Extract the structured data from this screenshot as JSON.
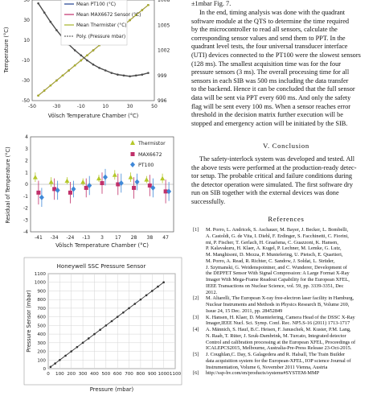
{
  "chart_data": [
    {
      "type": "line",
      "title": "",
      "xlabel": "Völsch Temperature Chamber (°C)",
      "ylabel": "Temperature (°C)",
      "y2label": "",
      "xlim": [
        -50,
        50
      ],
      "ylim": [
        -50,
        50
      ],
      "y2lim": [
        996,
        1008
      ],
      "x_ticks": [
        "-50",
        "-30",
        "-10",
        "10",
        "30",
        "50"
      ],
      "y_ticks": [
        "-50",
        "-30",
        "-10",
        "10",
        "30",
        "50"
      ],
      "y2_ticks": [
        "996",
        "999",
        "1002",
        "1005",
        "1008"
      ],
      "legend": {
        "placement": "top-center",
        "entries": [
          "Mean PT100 (°C)",
          "Mean MAX6672 Sensor (°C)",
          "Mean Thermister (°C)",
          "Poly. (Pressure mbar)"
        ]
      },
      "series": [
        {
          "name": "Mean PT100 (°C)",
          "color": "#1f3f8f",
          "axis": "left",
          "x": [
            -45,
            -40,
            -35,
            -30,
            -25,
            -20,
            -15,
            -10,
            -5,
            0,
            5,
            10,
            15,
            20,
            25,
            30,
            35,
            40,
            45
          ],
          "y": [
            -45,
            -40,
            -35,
            -30,
            -25,
            -20,
            -15,
            -10,
            -5,
            0,
            5,
            10,
            15,
            20,
            25,
            30,
            35,
            40,
            45
          ]
        },
        {
          "name": "Mean MAX6672 Sensor (°C)",
          "color": "#c0306a",
          "axis": "left",
          "x": [
            -45,
            -40,
            -35,
            -30,
            -25,
            -20,
            -15,
            -10,
            -5,
            0,
            5,
            10,
            15,
            20,
            25,
            30,
            35,
            40,
            45
          ],
          "y": [
            -45,
            -40,
            -35,
            -30,
            -25,
            -20,
            -15,
            -10,
            -5,
            0,
            5,
            10,
            15,
            20,
            25,
            30,
            35,
            40,
            45
          ]
        },
        {
          "name": "Mean Thermister (°C)",
          "color": "#a7b52a",
          "axis": "left",
          "x": [
            -45,
            -40,
            -35,
            -30,
            -25,
            -20,
            -15,
            -10,
            -5,
            0,
            5,
            10,
            15,
            20,
            25,
            30,
            35,
            40,
            45
          ],
          "y": [
            -45,
            -40,
            -35,
            -30,
            -25,
            -20,
            -15,
            -10,
            -5,
            0,
            5,
            10,
            15,
            20,
            25,
            30,
            35,
            40,
            45
          ]
        },
        {
          "name": "Poly. (Pressure mbar)",
          "color": "#4a4a4a",
          "axis": "right",
          "x": [
            -45,
            -40,
            -35,
            -30,
            -25,
            -20,
            -15,
            -10,
            -5,
            0,
            5,
            10,
            15,
            20,
            25,
            30,
            35,
            40,
            45
          ],
          "y": [
            1007.6,
            1006.5,
            1005.4,
            1004.4,
            1003.5,
            1002.7,
            1002.0,
            1001.4,
            1000.8,
            1000.3,
            999.9,
            999.6,
            999.3,
            999.1,
            999.0,
            998.9,
            999.0,
            999.1,
            999.3
          ]
        }
      ]
    },
    {
      "type": "scatter",
      "title": "",
      "xlabel": "Völsch Temperature Chamber (°C)",
      "ylabel": "Residual of Temperature (°C)",
      "ylim": [
        -4,
        4
      ],
      "y_ticks": [
        "-4",
        "-3",
        "-2",
        "-1",
        "0",
        "1",
        "2",
        "3",
        "4"
      ],
      "categories": [
        "-41",
        "-34",
        "-24",
        "-13",
        "3",
        "17",
        "28",
        "38",
        "47"
      ],
      "legend": {
        "placement": "top-right",
        "entries": [
          "Thermistor",
          "MAX6672",
          "PT100"
        ]
      },
      "series": [
        {
          "name": "Thermistor",
          "color": "#b5c82a",
          "marker": "triangle",
          "values": [
            0.6,
            0.2,
            0.3,
            0.2,
            0.5,
            0.8,
            0.6,
            0.4,
            0.5
          ],
          "err": [
            0.4,
            0.4,
            0.3,
            0.3,
            0.3,
            0.4,
            0.4,
            0.3,
            0.4
          ]
        },
        {
          "name": "MAX6672",
          "color": "#c0306a",
          "marker": "square",
          "values": [
            -0.7,
            -0.4,
            -0.7,
            -0.3,
            0.1,
            0.0,
            -0.3,
            -0.1,
            -0.6
          ],
          "err": [
            1.0,
            0.9,
            0.9,
            0.8,
            0.9,
            0.9,
            0.9,
            0.9,
            1.0
          ]
        },
        {
          "name": "PT100",
          "color": "#3f88d8",
          "marker": "diamond",
          "values": [
            -1.1,
            -0.5,
            -0.4,
            -0.1,
            0.6,
            0.1,
            0.2,
            -0.3,
            -0.6
          ],
          "err": [
            0.8,
            0.8,
            0.7,
            0.8,
            0.7,
            0.8,
            0.7,
            0.8,
            0.8
          ]
        }
      ]
    },
    {
      "type": "scatter",
      "title": "Honeywell SSC Pressure Sensor",
      "xlabel": "Pressure (mbar)",
      "ylabel": "Pressure Sensor (mbar)",
      "xlim": [
        0,
        1100
      ],
      "ylim": [
        0,
        1100
      ],
      "x_ticks": [
        "0",
        "100",
        "200",
        "300",
        "400",
        "500",
        "600",
        "700",
        "800",
        "900",
        "1000",
        "1100"
      ],
      "y_ticks": [
        "0",
        "100",
        "200",
        "300",
        "400",
        "500",
        "600",
        "700",
        "800",
        "900",
        "1000",
        "1100"
      ],
      "grid": true,
      "series": [
        {
          "name": "",
          "color": "#333333",
          "x": [
            20,
            60,
            100,
            150,
            200,
            250,
            300,
            350,
            400,
            450,
            500,
            550,
            600,
            650,
            700,
            750,
            800,
            850,
            900,
            950,
            1000
          ],
          "y": [
            20,
            60,
            100,
            150,
            200,
            250,
            300,
            350,
            400,
            450,
            500,
            550,
            600,
            650,
            700,
            750,
            800,
            850,
            900,
            950,
            1000
          ]
        }
      ]
    }
  ],
  "text": {
    "intro_line": "±1mbar Fig. 7.",
    "para1": [
      "In the end, timing analysis was done with the quadrant",
      "software module at the QTS to determine the time required",
      "by the microcontroller to read all sensors, calculate the",
      "corresponding sensor values and send them to PPT. In the",
      "quadrant level tests, the four universal transducer interface",
      "(UTI) devices connected to the PT100 were the slowest sensors",
      "(128 ms). The smallest acquisition time was for the four",
      "pressure sensors (3 ms). The overall processing time for all",
      "sensors in each SIB was 500 ms including the data transfer",
      "to the backend. Hence it can be concluded that the full sensor",
      "data will be sent via PPT every 600 ms. And only the safety",
      "flag will be sent every 100 ms. When a sensor reaches error",
      "threshold in the decision matrix further execution will be",
      "stopped and emergency action will be initiated by the SIB."
    ],
    "conclusion_heading": "V. Conclusion",
    "para2": [
      "The safety-interlock system was developed and tested. All",
      "the above tests were performed at the production-ready detec-",
      "tor setup. The probable critical and failure conditions during",
      "the detector operation were simulated. The first software dry",
      "run on SIB together with the external devices was done",
      "successfully."
    ],
    "references_heading": "References",
    "references": [
      {
        "n": "[1]",
        "lines": [
          "M. Porro, L. Andricek, S. Aschauer, M. Bayer, J. Becker, L. Bombelli,",
          "A. Castoldi, G. de Vita, I. Diehl, F. Erdinger, S. Facchinetti, C. Fiorini,",
          "mi, P. Fischer, T. Gerlach, H. Graafsma, C. Guazzoni, K. Hansen,",
          "P. Kalavakuru, H. Klaer, A. Kugel, P. Lechner, M. Lemke, G. Lutz,",
          "M. Manghisoni, D. Mezza, P. Muntefering, U. Pietsch, E. Quartieri,",
          "M. Porro, A. Read, R. Richter, C. Sandow, J. Soldat, L. Strüder,",
          "J. Szymanski, G. Weidenspointner, and C. Wunderer, Development of",
          "the DEPFET Sensor With Signal Compression: A Large Format X-Ray",
          "Imager With Mega-Frame Readout Capability for the European XFEL,",
          "IEEE Transactions on Nuclear Science, vol. 59, pp. 3339-3351, Dec",
          "2012."
        ]
      },
      {
        "n": "[2]",
        "lines": [
          "M. Altarelli, The European X-ray free-electron laser facility in Hamburg,",
          "Nuclear Instruments and Methods in Physics Research B, Volume 269,",
          "Issue 24, 15 Dec. 2011, pp. 28452849"
        ]
      },
      {
        "n": "[3]",
        "lines": [
          "K. Hansen, H. Klaer, D. Muentefering, Camera Head of the DSSC X-Ray",
          "Imager,IEEE Nucl. Sci. Symp. Conf. Rec. NP5.S-16 (2011) 1713-1717"
        ]
      },
      {
        "n": "[4]",
        "lines": [
          "A. Männich, S. Hauf, B.C. Heisen, F. Januschek, M. Kuster, P.M. Lang,",
          "N. Raab, T. Rüter, J. Szuk-Dambrink, M. Turcato, Integrated detector",
          "Control and calibration processing at the European XFEL, Proceedings of",
          "ICALEPCS2015, Melbourne, Australia-Pre-Press Release 23-Oct-2015."
        ]
      },
      {
        "n": "[5]",
        "lines": [
          "J. Coughlan,C. Day, S. Galagedera and R. Halsall, The Train Builder",
          "data acquisition system for the European-XFEL, IOP science Journal of",
          "Instrumentation, Volume 6, November 2011 Vienna, Austria"
        ]
      },
      {
        "n": "[6]",
        "lines": [
          "http://ssp-hv.com/en/products/systems#SYSTEM-MMP"
        ]
      }
    ]
  }
}
